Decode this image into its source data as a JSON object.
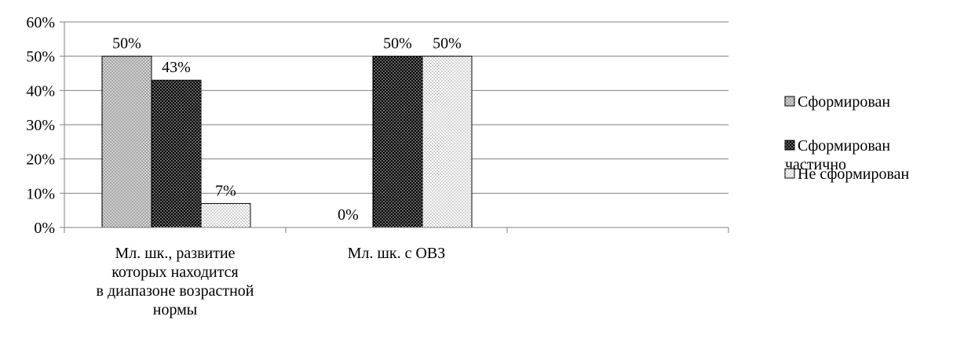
{
  "chart_data": {
    "type": "bar",
    "categories": [
      [
        "Мл. шк., развитие",
        "которых находится",
        "в диапазоне возрастной",
        "нормы"
      ],
      [
        "Мл. шк. с ОВЗ"
      ],
      [
        ""
      ]
    ],
    "series": [
      {
        "name": "Сформирован",
        "values": [
          50,
          0,
          null
        ],
        "data_labels": [
          "50%",
          "0%",
          ""
        ]
      },
      {
        "name": "Сформирован частично",
        "values": [
          43,
          50,
          null
        ],
        "data_labels": [
          "43%",
          "50%",
          ""
        ]
      },
      {
        "name": "Не сформирован",
        "values": [
          7,
          50,
          null
        ],
        "data_labels": [
          "7%",
          "50%",
          ""
        ]
      }
    ],
    "y_ticks": [
      "0%",
      "10%",
      "20%",
      "30%",
      "40%",
      "50%",
      "60%"
    ],
    "ylim": [
      0,
      60
    ],
    "title": "",
    "xlabel": "",
    "ylabel": "",
    "grid": true,
    "legend_position": "right",
    "legend": [
      {
        "lines": [
          "Сформирован"
        ]
      },
      {
        "lines": [
          "Сформирован",
          "частично"
        ]
      },
      {
        "lines": [
          "Не сформирован"
        ]
      }
    ],
    "colors": {
      "stroke": "#000000",
      "grid": "#808080",
      "series_fill": [
        "#cfcfcf",
        "#000000",
        "#ffffff"
      ],
      "series_dot": [
        "#6a6a6a",
        "#ffffff",
        "#8a8a8a"
      ]
    }
  }
}
